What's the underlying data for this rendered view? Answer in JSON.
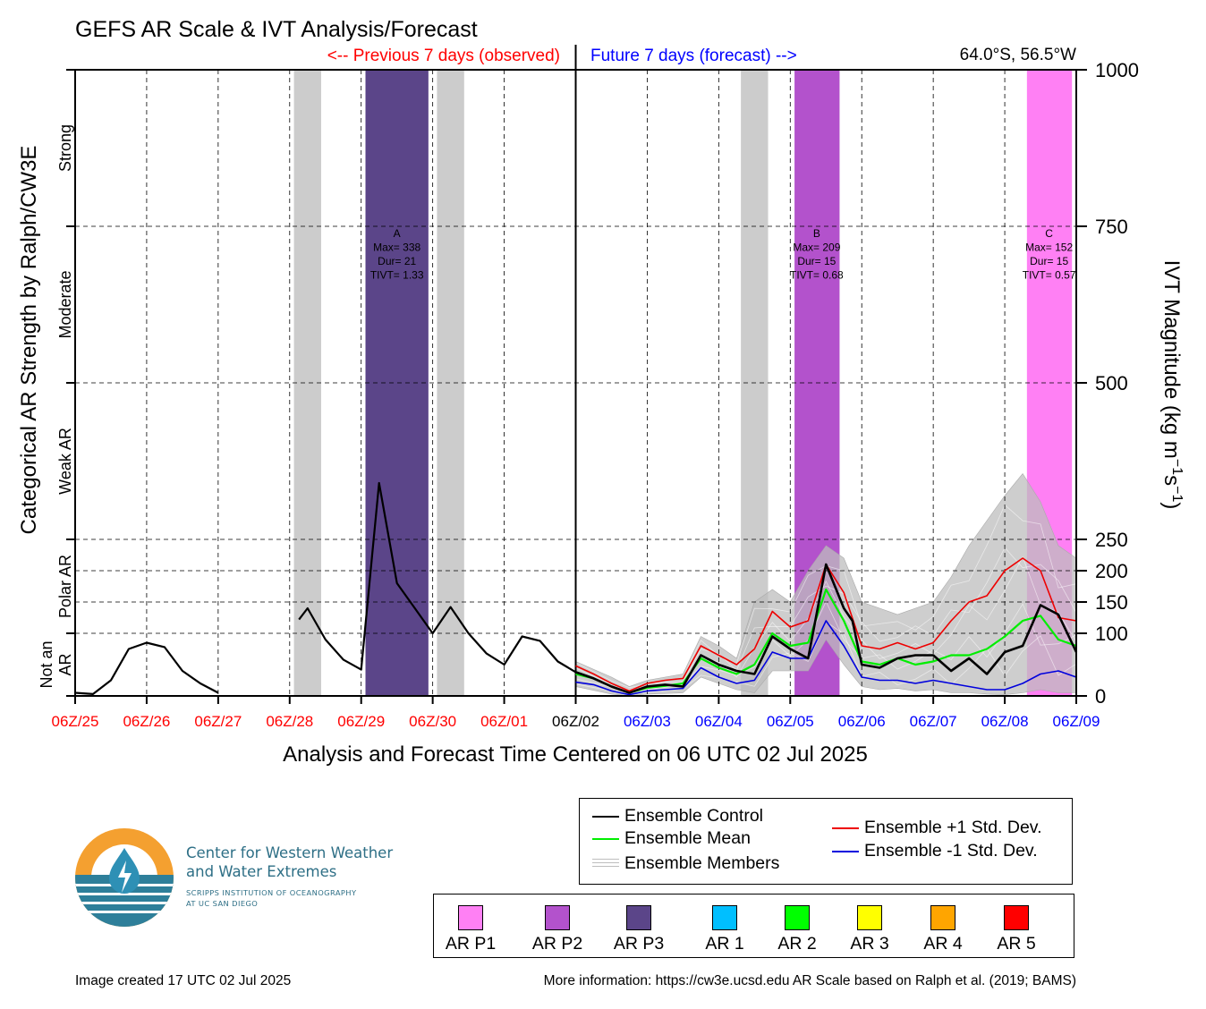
{
  "title": "GEFS AR Scale & IVT Analysis/Forecast",
  "header": {
    "previous_label": "<-- Previous 7 days (observed)",
    "future_label": "Future 7 days (forecast) -->",
    "location": "64.0°S, 56.5°W"
  },
  "xlabel": "Analysis and Forecast Time Centered on 06 UTC 02 Jul 2025",
  "ylabel_left": "Categorical AR Strength by Ralph/CW3E",
  "colors": {
    "past": "#ff0000",
    "future": "#0000ff",
    "now": "#000000",
    "control": "#000000",
    "mean": "#00ee00",
    "plus_sd": "#ee0000",
    "minus_sd": "#0000dd",
    "members": "#bdbdbd"
  },
  "chart_data": {
    "type": "line",
    "xlim": [
      0,
      14
    ],
    "ylim": [
      0,
      1000
    ],
    "x_ticks": [
      {
        "label": "06Z/25",
        "period": "past"
      },
      {
        "label": "06Z/26",
        "period": "past"
      },
      {
        "label": "06Z/27",
        "period": "past"
      },
      {
        "label": "06Z/28",
        "period": "past"
      },
      {
        "label": "06Z/29",
        "period": "past"
      },
      {
        "label": "06Z/30",
        "period": "past"
      },
      {
        "label": "06Z/01",
        "period": "past"
      },
      {
        "label": "06Z/02",
        "period": "now"
      },
      {
        "label": "06Z/03",
        "period": "future"
      },
      {
        "label": "06Z/04",
        "period": "future"
      },
      {
        "label": "06Z/05",
        "period": "future"
      },
      {
        "label": "06Z/06",
        "period": "future"
      },
      {
        "label": "06Z/07",
        "period": "future"
      },
      {
        "label": "06Z/08",
        "period": "future"
      },
      {
        "label": "06Z/09",
        "period": "future"
      }
    ],
    "y_ticks": [
      0,
      100,
      150,
      200,
      250,
      500,
      750,
      1000
    ],
    "y_grid": [
      100,
      150,
      200,
      250,
      500,
      750
    ],
    "ylabel_right": "IVT Magnitude (kg m",
    "ylabel_right_sup1": "−1",
    "ylabel_right_mid": "s",
    "ylabel_right_sup2": "−1",
    "ylabel_right_end": ")",
    "categories_left": [
      {
        "label": "Not an AR",
        "lines": [
          "Not an",
          "AR"
        ],
        "ymin": 0,
        "ymax": 100
      },
      {
        "label": "Polar AR",
        "lines": [
          "Polar AR"
        ],
        "ymin": 100,
        "ymax": 250
      },
      {
        "label": "Weak AR",
        "lines": [
          "Weak AR"
        ],
        "ymin": 250,
        "ymax": 500
      },
      {
        "label": "Moderate",
        "lines": [
          "Moderate"
        ],
        "ymin": 500,
        "ymax": 750
      },
      {
        "label": "Strong",
        "lines": [
          "Strong"
        ],
        "ymin": 750,
        "ymax": 1000
      }
    ],
    "shaded_periods": [
      {
        "x0": 3.06,
        "x1": 3.44,
        "color": "#cccccc"
      },
      {
        "x0": 4.06,
        "x1": 4.94,
        "color": "#5b4589"
      },
      {
        "x0": 5.06,
        "x1": 5.44,
        "color": "#cccccc"
      },
      {
        "x0": 9.31,
        "x1": 9.69,
        "color": "#cccccc"
      },
      {
        "x0": 10.06,
        "x1": 10.69,
        "color": "#b352cc"
      },
      {
        "x0": 13.31,
        "x1": 13.94,
        "color": "#ff80f4"
      }
    ],
    "events": [
      {
        "x": 4.5,
        "lines": [
          "A",
          "Max= 338",
          "Dur= 21",
          "TIVT= 1.33"
        ]
      },
      {
        "x": 10.37,
        "lines": [
          "B",
          "Max= 209",
          "Dur= 15",
          "TIVT= 0.68"
        ]
      },
      {
        "x": 13.62,
        "lines": [
          "C",
          "Max= 152",
          "Dur= 15",
          "TIVT= 0.57"
        ]
      }
    ],
    "observed": [
      {
        "name": "",
        "points": [
          [
            0.0,
            5
          ],
          [
            0.25,
            3
          ],
          [
            0.5,
            25
          ],
          [
            0.75,
            75
          ],
          [
            1.0,
            85
          ],
          [
            1.25,
            78
          ],
          [
            1.5,
            40
          ],
          [
            1.75,
            20
          ],
          [
            2.0,
            5
          ]
        ]
      },
      {
        "name": "",
        "points": [
          [
            3.13,
            122
          ],
          [
            3.25,
            140
          ],
          [
            3.5,
            90
          ],
          [
            3.75,
            58
          ],
          [
            4.0,
            42
          ],
          [
            4.25,
            340
          ],
          [
            4.5,
            180
          ],
          [
            4.75,
            140
          ],
          [
            5.0,
            100
          ],
          [
            5.25,
            142
          ],
          [
            5.5,
            100
          ],
          [
            5.75,
            68
          ],
          [
            6.0,
            50
          ],
          [
            6.25,
            95
          ],
          [
            6.5,
            88
          ],
          [
            6.75,
            55
          ],
          [
            7.0,
            38
          ]
        ]
      }
    ],
    "series": [
      {
        "name": "Ensemble Control",
        "key": "control",
        "width": 2.6,
        "points": [
          [
            7.0,
            38
          ],
          [
            7.25,
            28
          ],
          [
            7.5,
            15
          ],
          [
            7.75,
            5
          ],
          [
            8.0,
            15
          ],
          [
            8.25,
            18
          ],
          [
            8.5,
            15
          ],
          [
            8.75,
            65
          ],
          [
            9.0,
            50
          ],
          [
            9.25,
            40
          ],
          [
            9.5,
            35
          ],
          [
            9.75,
            95
          ],
          [
            10.0,
            75
          ],
          [
            10.25,
            60
          ],
          [
            10.5,
            210
          ],
          [
            10.75,
            140
          ],
          [
            10.87,
            120
          ],
          [
            11.0,
            50
          ],
          [
            11.25,
            45
          ],
          [
            11.5,
            60
          ],
          [
            11.75,
            65
          ],
          [
            12.0,
            65
          ],
          [
            12.25,
            40
          ],
          [
            12.5,
            60
          ],
          [
            12.75,
            35
          ],
          [
            13.0,
            70
          ],
          [
            13.25,
            80
          ],
          [
            13.5,
            145
          ],
          [
            13.75,
            130
          ],
          [
            14.0,
            70
          ]
        ]
      },
      {
        "name": "Ensemble Mean",
        "key": "mean",
        "width": 2.2,
        "points": [
          [
            7.0,
            35
          ],
          [
            7.25,
            28
          ],
          [
            7.5,
            15
          ],
          [
            7.75,
            5
          ],
          [
            8.0,
            13
          ],
          [
            8.25,
            16
          ],
          [
            8.5,
            20
          ],
          [
            8.75,
            60
          ],
          [
            9.0,
            45
          ],
          [
            9.25,
            35
          ],
          [
            9.5,
            50
          ],
          [
            9.75,
            100
          ],
          [
            10.0,
            80
          ],
          [
            10.25,
            85
          ],
          [
            10.5,
            170
          ],
          [
            10.75,
            120
          ],
          [
            11.0,
            55
          ],
          [
            11.25,
            50
          ],
          [
            11.5,
            60
          ],
          [
            11.75,
            50
          ],
          [
            12.0,
            55
          ],
          [
            12.25,
            65
          ],
          [
            12.5,
            65
          ],
          [
            12.75,
            75
          ],
          [
            13.0,
            95
          ],
          [
            13.25,
            120
          ],
          [
            13.5,
            128
          ],
          [
            13.75,
            90
          ],
          [
            14.0,
            80
          ]
        ]
      },
      {
        "name": "Ensemble +1 Std. Dev.",
        "key": "plus_sd",
        "width": 1.6,
        "points": [
          [
            7.0,
            48
          ],
          [
            7.25,
            35
          ],
          [
            7.5,
            20
          ],
          [
            7.75,
            8
          ],
          [
            8.0,
            20
          ],
          [
            8.25,
            25
          ],
          [
            8.5,
            28
          ],
          [
            8.75,
            80
          ],
          [
            9.0,
            65
          ],
          [
            9.25,
            50
          ],
          [
            9.5,
            75
          ],
          [
            9.75,
            135
          ],
          [
            10.0,
            110
          ],
          [
            10.25,
            120
          ],
          [
            10.5,
            210
          ],
          [
            10.75,
            165
          ],
          [
            11.0,
            80
          ],
          [
            11.25,
            75
          ],
          [
            11.5,
            85
          ],
          [
            11.75,
            75
          ],
          [
            12.0,
            85
          ],
          [
            12.25,
            120
          ],
          [
            12.5,
            150
          ],
          [
            12.75,
            160
          ],
          [
            13.0,
            200
          ],
          [
            13.25,
            220
          ],
          [
            13.5,
            200
          ],
          [
            13.75,
            125
          ],
          [
            14.0,
            120
          ]
        ]
      },
      {
        "name": "Ensemble -1 Std. Dev.",
        "key": "minus_sd",
        "width": 1.6,
        "points": [
          [
            7.0,
            22
          ],
          [
            7.25,
            18
          ],
          [
            7.5,
            8
          ],
          [
            7.75,
            2
          ],
          [
            8.0,
            8
          ],
          [
            8.25,
            10
          ],
          [
            8.5,
            12
          ],
          [
            8.75,
            45
          ],
          [
            9.0,
            30
          ],
          [
            9.25,
            20
          ],
          [
            9.5,
            25
          ],
          [
            9.75,
            70
          ],
          [
            10.0,
            60
          ],
          [
            10.25,
            60
          ],
          [
            10.5,
            120
          ],
          [
            10.75,
            80
          ],
          [
            11.0,
            30
          ],
          [
            11.25,
            25
          ],
          [
            11.5,
            25
          ],
          [
            11.75,
            20
          ],
          [
            12.0,
            25
          ],
          [
            12.25,
            20
          ],
          [
            12.5,
            15
          ],
          [
            12.75,
            10
          ],
          [
            13.0,
            10
          ],
          [
            13.25,
            20
          ],
          [
            13.5,
            35
          ],
          [
            13.75,
            40
          ],
          [
            14.0,
            30
          ]
        ]
      }
    ],
    "member_envelope": {
      "upper": [
        [
          7.0,
          55
        ],
        [
          7.5,
          30
        ],
        [
          7.75,
          15
        ],
        [
          8.0,
          25
        ],
        [
          8.5,
          35
        ],
        [
          8.75,
          95
        ],
        [
          9.0,
          80
        ],
        [
          9.25,
          60
        ],
        [
          9.5,
          150
        ],
        [
          9.75,
          170
        ],
        [
          10.0,
          150
        ],
        [
          10.25,
          200
        ],
        [
          10.5,
          240
        ],
        [
          10.75,
          220
        ],
        [
          11.0,
          150
        ],
        [
          11.25,
          140
        ],
        [
          11.5,
          130
        ],
        [
          11.75,
          140
        ],
        [
          12.0,
          150
        ],
        [
          12.25,
          190
        ],
        [
          12.5,
          240
        ],
        [
          12.75,
          280
        ],
        [
          13.0,
          320
        ],
        [
          13.25,
          355
        ],
        [
          13.5,
          310
        ],
        [
          13.75,
          240
        ],
        [
          14.0,
          220
        ]
      ],
      "lower": [
        [
          7.0,
          15
        ],
        [
          7.5,
          3
        ],
        [
          7.75,
          0
        ],
        [
          8.0,
          3
        ],
        [
          8.5,
          5
        ],
        [
          8.75,
          30
        ],
        [
          9.0,
          20
        ],
        [
          9.25,
          10
        ],
        [
          9.5,
          5
        ],
        [
          9.75,
          40
        ],
        [
          10.0,
          40
        ],
        [
          10.25,
          40
        ],
        [
          10.5,
          90
        ],
        [
          10.75,
          50
        ],
        [
          11.0,
          15
        ],
        [
          11.25,
          10
        ],
        [
          11.5,
          12
        ],
        [
          11.75,
          8
        ],
        [
          12.0,
          10
        ],
        [
          12.25,
          5
        ],
        [
          12.5,
          5
        ],
        [
          12.75,
          3
        ],
        [
          13.0,
          2
        ],
        [
          13.25,
          5
        ],
        [
          13.5,
          10
        ],
        [
          13.75,
          5
        ],
        [
          14.0,
          5
        ]
      ]
    }
  },
  "legend": {
    "items": [
      {
        "label": "Ensemble Control",
        "key": "control"
      },
      {
        "label": "Ensemble Mean",
        "key": "mean"
      },
      {
        "label": "Ensemble Members",
        "key": "members"
      },
      {
        "label": "Ensemble +1 Std. Dev.",
        "key": "plus_sd"
      },
      {
        "label": "Ensemble -1 Std. Dev.",
        "key": "minus_sd"
      }
    ]
  },
  "ar_scale": [
    {
      "label": "AR P1",
      "color": "#ff80f4"
    },
    {
      "label": "AR P2",
      "color": "#b352cc"
    },
    {
      "label": "AR P3",
      "color": "#5b4589"
    },
    {
      "label": "AR 1",
      "color": "#00bfff"
    },
    {
      "label": "AR 2",
      "color": "#00ff00"
    },
    {
      "label": "AR 3",
      "color": "#ffff00"
    },
    {
      "label": "AR 4",
      "color": "#ffa500"
    },
    {
      "label": "AR 5",
      "color": "#ff0000"
    }
  ],
  "logo": {
    "line1": "Center for Western Weather",
    "line2": "and Water Extremes",
    "sub1": "SCRIPPS INSTITUTION OF OCEANOGRAPHY",
    "sub2": "AT UC SAN DIEGO"
  },
  "footer": {
    "created": "Image created 17 UTC 02 Jul 2025",
    "info": "More information: https://cw3e.ucsd.edu AR Scale based on Ralph et al. (2019; BAMS)"
  }
}
